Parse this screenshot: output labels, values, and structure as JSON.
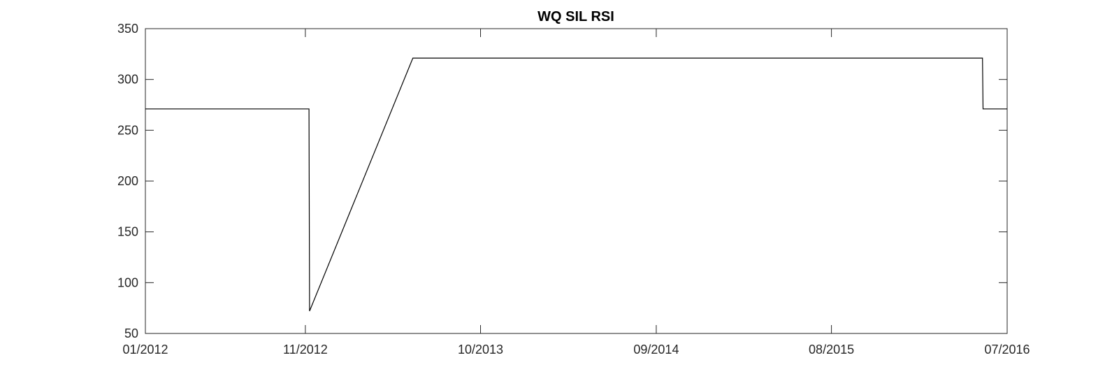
{
  "chart_data": {
    "type": "line",
    "title": "WQ SIL RSI",
    "xlabel": "",
    "ylabel": "",
    "xlim": [
      "2012-01-01",
      "2016-07-01"
    ],
    "ylim": [
      50,
      350
    ],
    "x_ticks": [
      {
        "date": "2012-01-01",
        "label": "01/2012"
      },
      {
        "date": "2012-11-01",
        "label": "11/2012"
      },
      {
        "date": "2013-10-01",
        "label": "10/2013"
      },
      {
        "date": "2014-09-01",
        "label": "09/2014"
      },
      {
        "date": "2015-08-01",
        "label": "08/2015"
      },
      {
        "date": "2016-07-01",
        "label": "07/2016"
      }
    ],
    "y_ticks": [
      50,
      100,
      150,
      200,
      250,
      300,
      350
    ],
    "grid": false,
    "series": [
      {
        "color": "#000000",
        "points": [
          {
            "x": "2012-01-01",
            "y": 271
          },
          {
            "x": "2012-11-08",
            "y": 271
          },
          {
            "x": "2012-11-09",
            "y": 72
          },
          {
            "x": "2013-05-25",
            "y": 321
          },
          {
            "x": "2016-05-15",
            "y": 321
          },
          {
            "x": "2016-05-16",
            "y": 271
          },
          {
            "x": "2016-07-01",
            "y": 271
          }
        ]
      }
    ]
  }
}
